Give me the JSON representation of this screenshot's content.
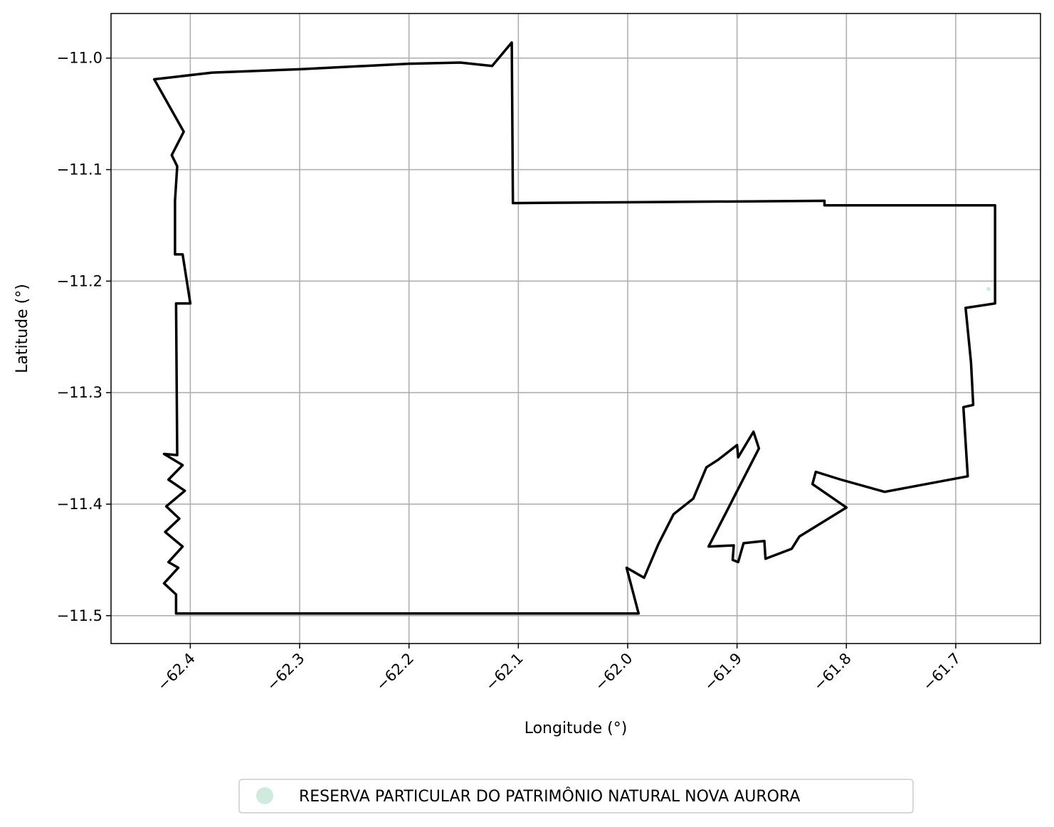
{
  "chart_data": {
    "type": "map",
    "xlabel": "Longitude (°)",
    "ylabel": "Latitude (°)",
    "xlim": [
      -62.4725,
      -61.6225
    ],
    "ylim": [
      -11.525,
      -10.96
    ],
    "grid": true,
    "x_ticks": [
      {
        "value": -62.4,
        "label": "−62.4"
      },
      {
        "value": -62.3,
        "label": "−62.3"
      },
      {
        "value": -62.2,
        "label": "−62.2"
      },
      {
        "value": -62.1,
        "label": "−62.1"
      },
      {
        "value": -62.0,
        "label": "−62.0"
      },
      {
        "value": -61.9,
        "label": "−61.9"
      },
      {
        "value": -61.8,
        "label": "−61.8"
      },
      {
        "value": -61.7,
        "label": "−61.7"
      }
    ],
    "y_ticks": [
      {
        "value": -11.0,
        "label": "−11.0"
      },
      {
        "value": -11.1,
        "label": "−11.1"
      },
      {
        "value": -11.2,
        "label": "−11.2"
      },
      {
        "value": -11.3,
        "label": "−11.3"
      },
      {
        "value": -11.4,
        "label": "−11.4"
      },
      {
        "value": -11.5,
        "label": "−11.5"
      }
    ],
    "boundary_color": "#000000",
    "boundary": [
      [
        -62.433,
        -11.019
      ],
      [
        -62.38,
        -11.013
      ],
      [
        -62.3,
        -11.01
      ],
      [
        -62.2,
        -11.005
      ],
      [
        -62.153,
        -11.004
      ],
      [
        -62.124,
        -11.007
      ],
      [
        -62.106,
        -10.986
      ],
      [
        -62.105,
        -11.13
      ],
      [
        -61.82,
        -11.128
      ],
      [
        -61.82,
        -11.132
      ],
      [
        -61.664,
        -11.132
      ],
      [
        -61.664,
        -11.22
      ],
      [
        -61.691,
        -11.224
      ],
      [
        -61.686,
        -11.273
      ],
      [
        -61.684,
        -11.311
      ],
      [
        -61.693,
        -11.313
      ],
      [
        -61.689,
        -11.375
      ],
      [
        -61.765,
        -11.389
      ],
      [
        -61.805,
        -11.378
      ],
      [
        -61.828,
        -11.371
      ],
      [
        -61.831,
        -11.382
      ],
      [
        -61.8,
        -11.403
      ],
      [
        -61.843,
        -11.429
      ],
      [
        -61.85,
        -11.44
      ],
      [
        -61.874,
        -11.449
      ],
      [
        -61.875,
        -11.433
      ],
      [
        -61.894,
        -11.435
      ],
      [
        -61.899,
        -11.452
      ],
      [
        -61.904,
        -11.45
      ],
      [
        -61.903,
        -11.437
      ],
      [
        -61.926,
        -11.438
      ],
      [
        -61.88,
        -11.35
      ],
      [
        -61.885,
        -11.335
      ],
      [
        -61.899,
        -11.358
      ],
      [
        -61.9,
        -11.347
      ],
      [
        -61.917,
        -11.36
      ],
      [
        -61.928,
        -11.367
      ],
      [
        -61.94,
        -11.395
      ],
      [
        -61.958,
        -11.409
      ],
      [
        -61.972,
        -11.436
      ],
      [
        -61.985,
        -11.466
      ],
      [
        -62.001,
        -11.457
      ],
      [
        -61.99,
        -11.498
      ],
      [
        -62.413,
        -11.498
      ],
      [
        -62.413,
        -11.481
      ],
      [
        -62.424,
        -11.471
      ],
      [
        -62.411,
        -11.457
      ],
      [
        -62.42,
        -11.452
      ],
      [
        -62.407,
        -11.438
      ],
      [
        -62.423,
        -11.425
      ],
      [
        -62.41,
        -11.413
      ],
      [
        -62.422,
        -11.402
      ],
      [
        -62.405,
        -11.388
      ],
      [
        -62.42,
        -11.378
      ],
      [
        -62.407,
        -11.365
      ],
      [
        -62.424,
        -11.355
      ],
      [
        -62.412,
        -11.356
      ],
      [
        -62.413,
        -11.22
      ],
      [
        -62.4,
        -11.22
      ],
      [
        -62.407,
        -11.176
      ],
      [
        -62.414,
        -11.176
      ],
      [
        -62.414,
        -11.128
      ],
      [
        -62.412,
        -11.097
      ],
      [
        -62.417,
        -11.087
      ],
      [
        -62.406,
        -11.066
      ],
      [
        -62.433,
        -11.019
      ]
    ],
    "series": [
      {
        "name": "RESERVA PARTICULAR DO PATRIMÔNIO NATURAL NOVA AURORA",
        "color": "#ceebdd",
        "points": [
          [
            -61.67,
            -11.207
          ]
        ]
      }
    ],
    "legend_position": "bottom-center"
  }
}
